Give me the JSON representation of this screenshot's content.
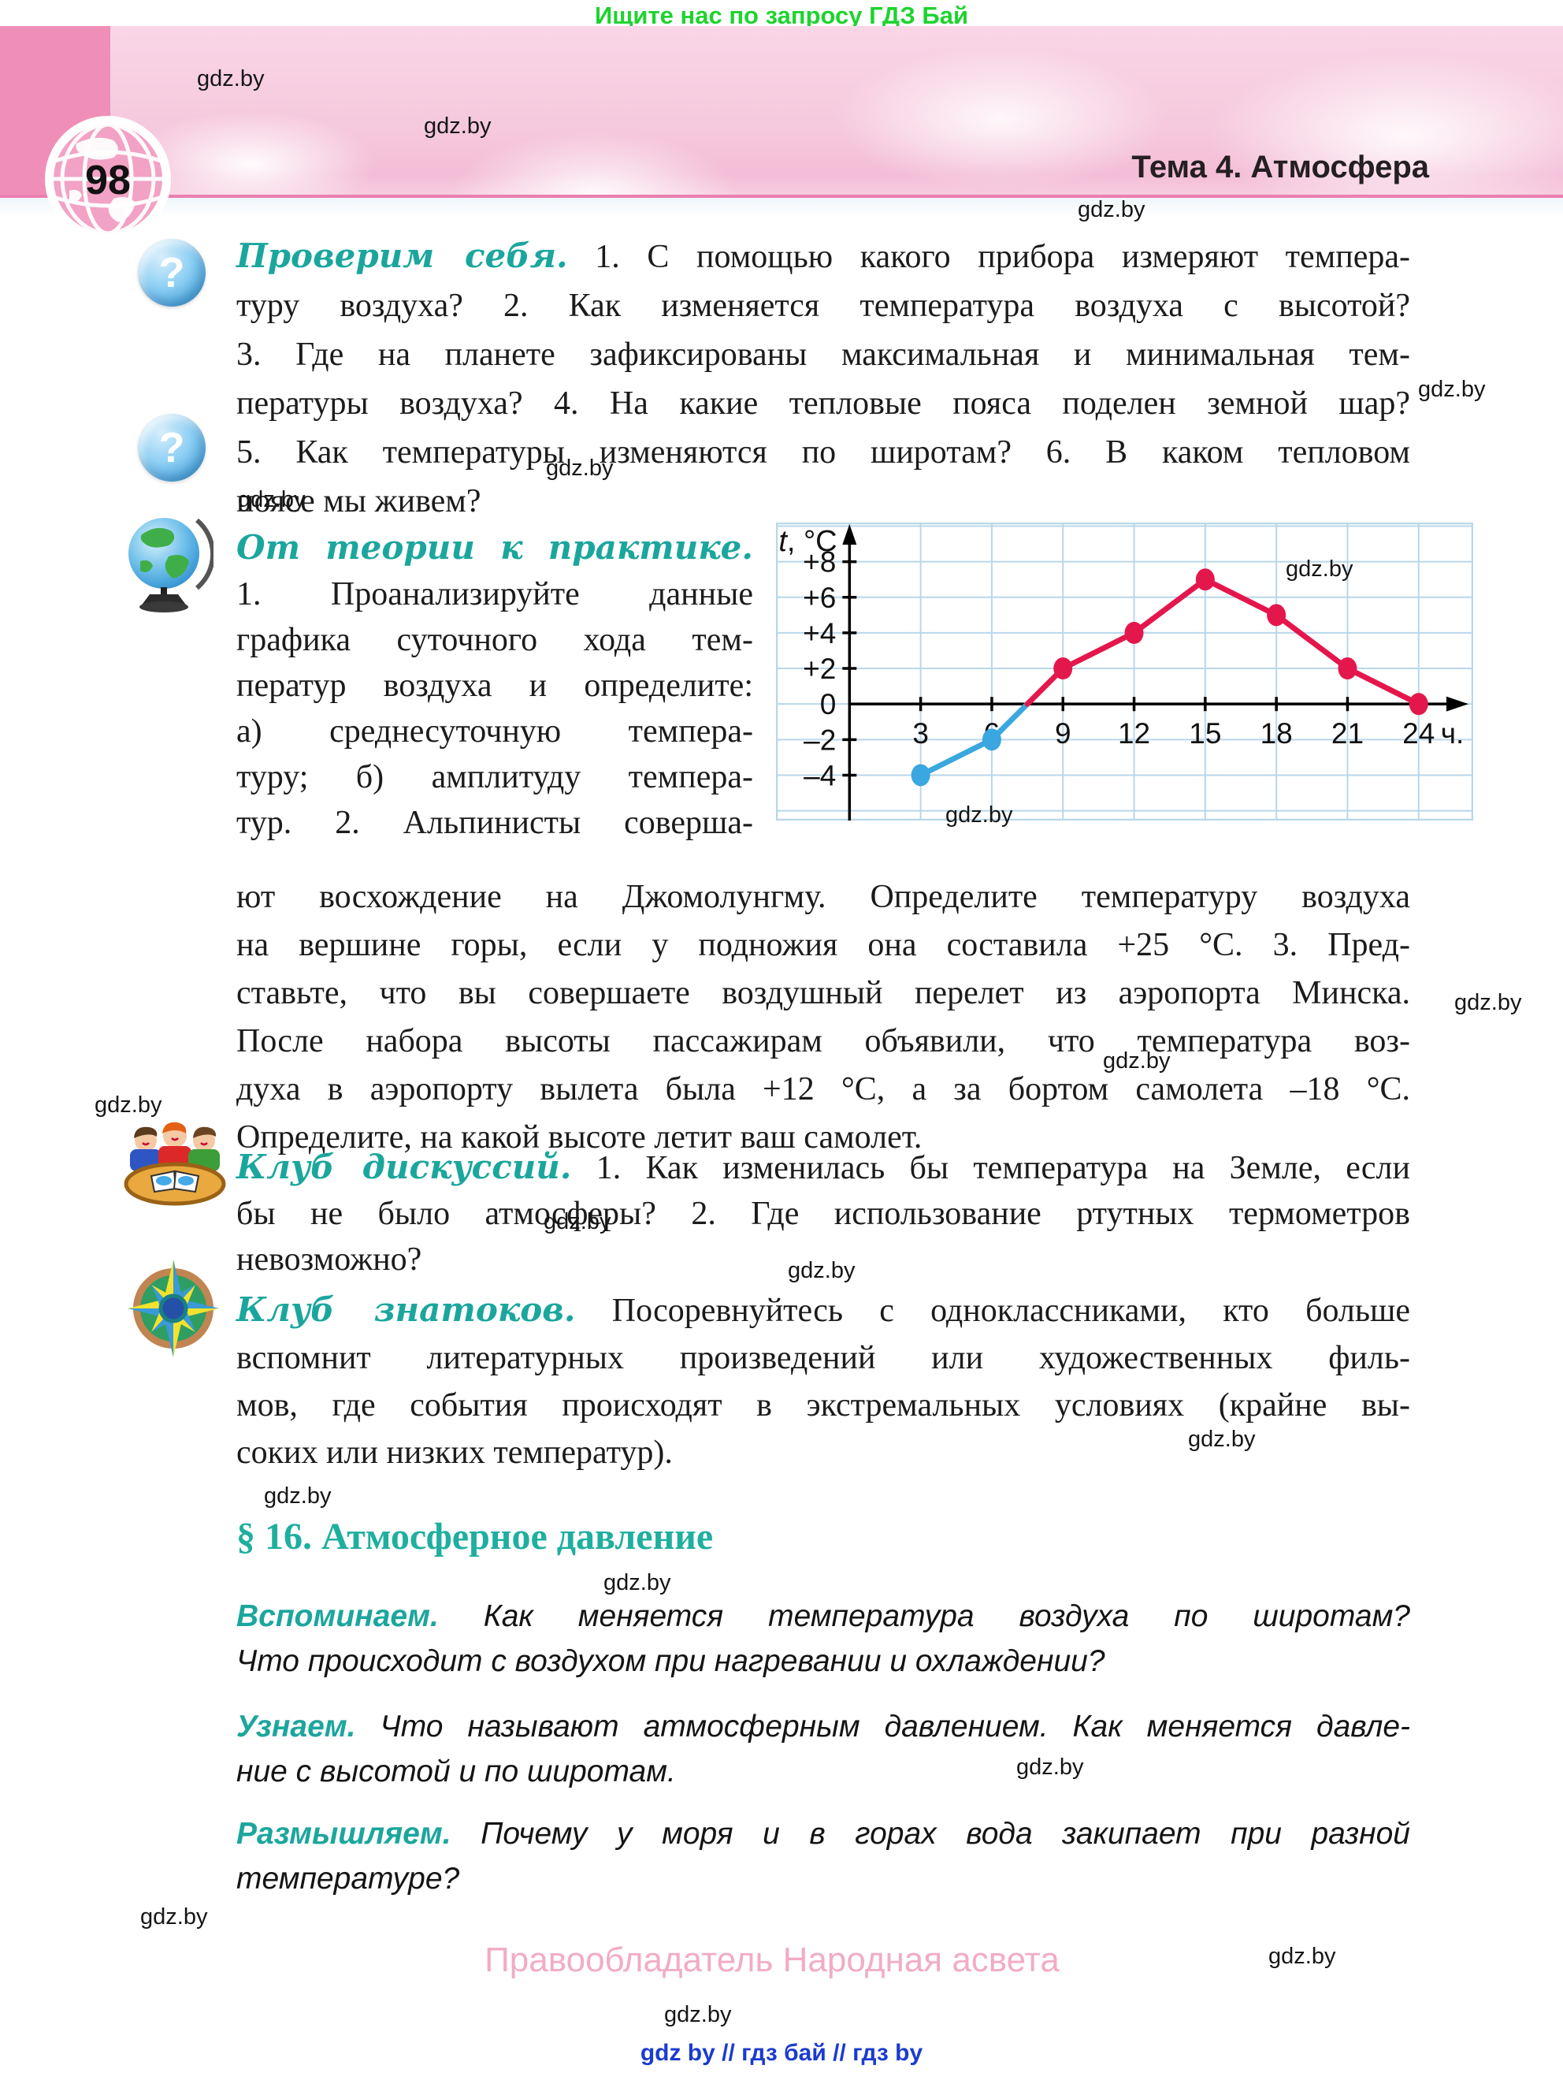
{
  "header": {
    "promo": "Ищите нас по запросу ГДЗ Бай",
    "page_number": "98",
    "theme": "Тема 4. Атмосфера"
  },
  "watermark": "gdz.by",
  "icons": {
    "question_mark": "?"
  },
  "sections": {
    "check": {
      "title": "Проверим себя.",
      "first": "1. С помощью какого прибора измеряют темпера-",
      "rest": [
        "туру воздуха? 2. Как изменяется температура воздуха с высотой?",
        "3. Где на планете зафиксированы максимальная и минимальная тем-",
        "пературы воздуха? 4. На какие тепловые пояса поделен земной шар?",
        "5. Как температуры изменяются по широтам? 6. В каком тепловом",
        "поясе мы живем?"
      ]
    },
    "practice": {
      "title": "От теории к практике.",
      "left_lines": [
        "1. Проанализируйте данные",
        "графика суточного хода тем-",
        "ператур воздуха и определите:",
        "а) среднесуточную темпера-",
        "туру; б) амплитуду темпера-",
        "тур. 2. Альпинисты соверша-"
      ],
      "cont_lines": [
        "ют восхождение на Джомолунгму. Определите температуру воздуха",
        "на вершине горы, если у подножия она составила +25 °С. 3. Пред-",
        "ставьте, что вы совершаете воздушный перелет из аэропорта Минска.",
        "После набора высоты пассажирам объявили, что температура воз-",
        "духа в аэропорту вылета была +12 °С, а за бортом самолета –18 °С.",
        "Определите, на какой высоте летит ваш самолет."
      ]
    },
    "discussion": {
      "title": "Клуб дискуссий.",
      "first": "1. Как изменилась бы температура на Земле, если",
      "rest": [
        "бы не было атмосферы? 2. Где использование ртутных термометров",
        "невозможно?"
      ]
    },
    "experts": {
      "title": "Клуб знатоков.",
      "first": "Посоревнуйтесь с одноклассниками, кто больше",
      "rest": [
        "вспомнит литературных произведений или художественных филь-",
        "мов, где события происходят в экстремальных условиях (крайне вы-",
        "соких или низких температур)."
      ]
    },
    "p16": {
      "heading": "§ 16. Атмосферное давление",
      "remember": {
        "label": "Вспоминаем.",
        "first": "Как меняется температура воздуха по широтам?",
        "rest": [
          "Что происходит с воздухом при нагревании и охлаждении?"
        ]
      },
      "learn": {
        "label": "Узнаем.",
        "first": "Что называют атмосферным давлением. Как меняется давле-",
        "rest": [
          "ние с высотой и по широтам."
        ]
      },
      "think": {
        "label": "Размышляем.",
        "first": "Почему у моря и в горах вода закипает при разной",
        "rest": [
          "температуре?"
        ]
      }
    }
  },
  "chart_data": {
    "type": "line",
    "x": [
      3,
      6,
      9,
      12,
      15,
      18,
      21,
      24
    ],
    "y": [
      -4,
      -2,
      2,
      4,
      7,
      5,
      2,
      0
    ],
    "x_tick_labels": [
      "3",
      "6",
      "9",
      "12",
      "15",
      "18",
      "21",
      "24"
    ],
    "y_ticks": [
      {
        "v": 8,
        "label": "+8"
      },
      {
        "v": 6,
        "label": "+6"
      },
      {
        "v": 4,
        "label": "+4"
      },
      {
        "v": 2,
        "label": "+2"
      },
      {
        "v": 0,
        "label": "0"
      },
      {
        "v": -2,
        "label": "–2"
      },
      {
        "v": -4,
        "label": "–4"
      }
    ],
    "ylabel_italic": "t",
    "ylabel_rest": ", °C",
    "xlabel": "ч.",
    "xlim": [
      -3.1,
      26.3
    ],
    "ylim": [
      -6.55,
      10.2
    ],
    "grid": true,
    "cold_points": [
      [
        3,
        -4
      ],
      [
        6,
        -2
      ],
      [
        7.5,
        0
      ]
    ],
    "warm_points": [
      [
        7.5,
        0
      ],
      [
        9,
        2
      ],
      [
        12,
        4
      ],
      [
        15,
        7
      ],
      [
        18,
        5
      ],
      [
        21,
        2
      ],
      [
        24,
        0
      ]
    ],
    "cold_color": "#3aa7e0",
    "warm_color": "#e4174d",
    "grid_color": "#b9d7ea",
    "axis_color": "#000000"
  },
  "footer": {
    "copyright": "Правообладатель Народная асвета",
    "links": "gdz by  //  гдз бай  //  гдз by"
  },
  "colors": {
    "accent_teal": "#1ba69d",
    "banner_pink": "#f6c9dd",
    "banner_dark_pink": "#ef8fb8",
    "promo_green": "#1ed32f",
    "footer_pink": "#f2abc6",
    "footer_blue": "#1b3bd0"
  }
}
